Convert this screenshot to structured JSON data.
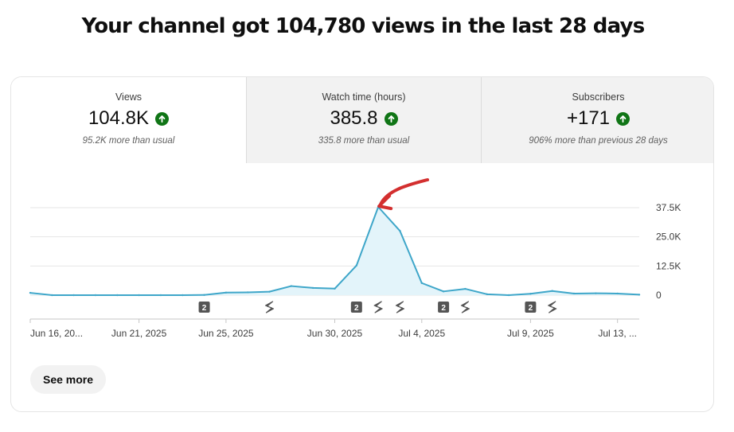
{
  "headline": "Your channel got 104,780 views in the last 28 days",
  "metrics": [
    {
      "label": "Views",
      "value": "104.8K",
      "note": "95.2K more than usual",
      "trend_icon": "arrow-up-circle-icon"
    },
    {
      "label": "Watch time (hours)",
      "value": "385.8",
      "note": "335.8 more than usual",
      "trend_icon": "arrow-up-circle-icon"
    },
    {
      "label": "Subscribers",
      "value": "+171",
      "note": "906% more than previous 28 days",
      "trend_icon": "arrow-up-circle-icon"
    }
  ],
  "colors": {
    "line": "#3ea6c9",
    "fill": "#e3f4fa",
    "trend_up": "#107516",
    "annotation_arrow": "#d32f2f"
  },
  "chart_data": {
    "type": "area",
    "x": [
      "2025-06-16",
      "2025-06-17",
      "2025-06-18",
      "2025-06-19",
      "2025-06-20",
      "2025-06-21",
      "2025-06-22",
      "2025-06-23",
      "2025-06-24",
      "2025-06-25",
      "2025-06-26",
      "2025-06-27",
      "2025-06-28",
      "2025-06-29",
      "2025-06-30",
      "2025-07-01",
      "2025-07-02",
      "2025-07-03",
      "2025-07-04",
      "2025-07-05",
      "2025-07-06",
      "2025-07-07",
      "2025-07-08",
      "2025-07-09",
      "2025-07-10",
      "2025-07-11",
      "2025-07-12",
      "2025-07-13",
      "2025-07-14"
    ],
    "values": [
      1000,
      0,
      0,
      0,
      0,
      0,
      0,
      0,
      100,
      1100,
      1200,
      1500,
      3900,
      3100,
      2800,
      12700,
      37800,
      27500,
      5200,
      1600,
      2700,
      400,
      0,
      600,
      1800,
      700,
      800,
      700,
      200
    ],
    "x_tick_labels": [
      "Jun 16, 20...",
      "Jun 21, 2025",
      "Jun 25, 2025",
      "Jun 30, 2025",
      "Jul 4, 2025",
      "Jul 9, 2025",
      "Jul 13, ..."
    ],
    "x_tick_dates": [
      "2025-06-16",
      "2025-06-21",
      "2025-06-25",
      "2025-06-30",
      "2025-07-04",
      "2025-07-09",
      "2025-07-13"
    ],
    "y_ticks": [
      0,
      12500,
      25000,
      37500
    ],
    "y_tick_labels": [
      "0",
      "12.5K",
      "25.0K",
      "37.5K"
    ],
    "ylim": [
      0,
      37500
    ],
    "grid": true,
    "annotation": "red arrow pointing at peak",
    "markers": [
      {
        "date": "2025-06-24",
        "kind": "count",
        "label": "2"
      },
      {
        "date": "2025-06-27",
        "kind": "shorts"
      },
      {
        "date": "2025-07-01",
        "kind": "count",
        "label": "2"
      },
      {
        "date": "2025-07-02",
        "kind": "shorts"
      },
      {
        "date": "2025-07-03",
        "kind": "shorts"
      },
      {
        "date": "2025-07-05",
        "kind": "count",
        "label": "2"
      },
      {
        "date": "2025-07-06",
        "kind": "shorts"
      },
      {
        "date": "2025-07-09",
        "kind": "count",
        "label": "2"
      },
      {
        "date": "2025-07-10",
        "kind": "shorts"
      }
    ]
  },
  "see_more_label": "See more"
}
